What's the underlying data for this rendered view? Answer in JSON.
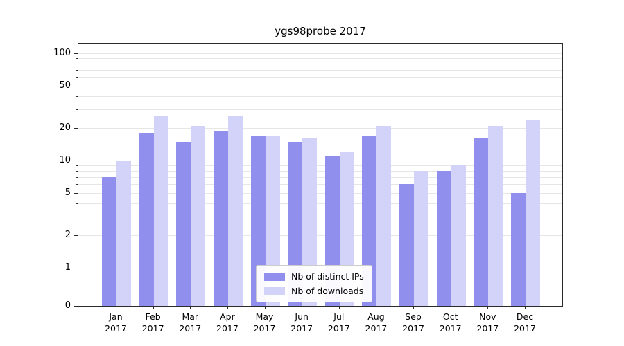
{
  "chart_data": {
    "type": "bar",
    "title": "ygs98probe 2017",
    "categories": [
      "Jan",
      "Feb",
      "Mar",
      "Apr",
      "May",
      "Jun",
      "Jul",
      "Aug",
      "Sep",
      "Oct",
      "Nov",
      "Dec"
    ],
    "x_year_label": "2017",
    "series": [
      {
        "name": "Nb of distinct IPs",
        "color": "#908fed",
        "values": [
          7,
          18,
          15,
          19,
          17,
          15,
          11,
          17,
          6,
          8,
          16,
          5
        ]
      },
      {
        "name": "Nb of downloads",
        "color": "#d3d2f8",
        "values": [
          10,
          26,
          21,
          26,
          17,
          16,
          12,
          21,
          8,
          9,
          21,
          24
        ]
      }
    ],
    "yscale": "symlog",
    "ylim": [
      0,
      115
    ],
    "yticks": [
      0,
      1,
      2,
      5,
      10,
      20,
      50,
      100
    ],
    "minor_gridlines": [
      1,
      2,
      3,
      4,
      5,
      6,
      7,
      8,
      9,
      10,
      20,
      30,
      40,
      50,
      60,
      70,
      80,
      90,
      100
    ],
    "grid": true,
    "legend_position": "lower-center",
    "axis_color": "#2b2b2b",
    "grid_color": "#e6e6e6",
    "background_color": "#ffffff"
  }
}
